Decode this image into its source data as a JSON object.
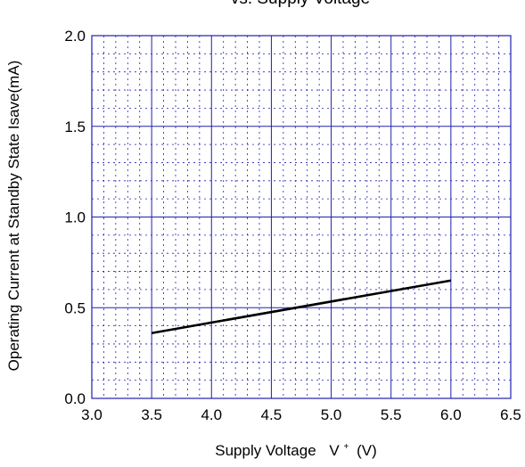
{
  "chart_data": {
    "type": "line",
    "title": "vs. Supply Voltage",
    "xlabel": "Supply Voltage",
    "xlabel_symbol": "V",
    "xlabel_superscript": "+",
    "xlabel_unit": "(V)",
    "ylabel": "Operating Current at Standby State  Isave(mA)",
    "xlim": [
      3.0,
      6.5
    ],
    "ylim": [
      0.0,
      2.0
    ],
    "x_ticks": [
      "3.0",
      "3.5",
      "4.0",
      "4.5",
      "5.0",
      "5.5",
      "6.0",
      "6.5"
    ],
    "y_ticks": [
      "0.0",
      "0.5",
      "1.0",
      "1.5",
      "2.0"
    ],
    "x_tick_values": [
      3.0,
      3.5,
      4.0,
      4.5,
      5.0,
      5.5,
      6.0,
      6.5
    ],
    "y_tick_values": [
      0.0,
      0.5,
      1.0,
      1.5,
      2.0
    ],
    "x_minor_step": 0.1,
    "y_minor_step": 0.1,
    "grid": true,
    "colors": {
      "grid": "#2020b0",
      "line": "#000000"
    },
    "series": [
      {
        "x": [
          3.5,
          6.0
        ],
        "y": [
          0.36,
          0.65
        ]
      }
    ]
  }
}
